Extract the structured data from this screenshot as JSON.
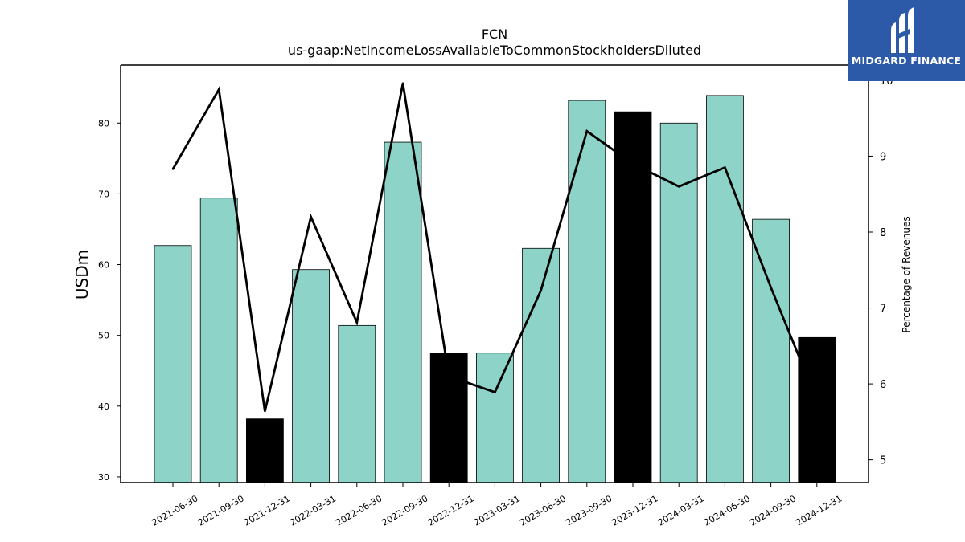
{
  "header": {
    "ticker": "FCN",
    "metric": "us-gaap:NetIncomeLossAvailableToCommonStockholdersDiluted"
  },
  "logo": {
    "text": "MIDGARD FINANCE",
    "background": "#2d5aa8"
  },
  "chart_data": {
    "type": "bar",
    "title": "FCN",
    "subtitle": "us-gaap:NetIncomeLossAvailableToCommonStockholdersDiluted",
    "ylabel": "USDm",
    "y2label": "Percentage of Revenues",
    "categories": [
      "2021-06-30",
      "2021-09-30",
      "2021-12-31",
      "2022-03-31",
      "2022-06-30",
      "2022-09-30",
      "2022-12-31",
      "2023-03-31",
      "2023-06-30",
      "2023-09-30",
      "2023-12-31",
      "2024-03-31",
      "2024-06-30",
      "2024-09-30",
      "2024-12-31"
    ],
    "ylim": [
      29.2,
      88.2
    ],
    "y2lim": [
      4.7,
      10.2
    ],
    "yticks": [
      30,
      40,
      50,
      60,
      70,
      80
    ],
    "y2ticks": [
      5,
      6,
      7,
      8,
      9,
      10
    ],
    "series": [
      {
        "name": "",
        "kind": "bar",
        "values": [
          62.7,
          69.4,
          38.2,
          59.3,
          51.4,
          77.3,
          47.5,
          47.5,
          62.3,
          83.2,
          81.6,
          80.0,
          83.9,
          66.4,
          49.7
        ],
        "colors": [
          "#8dd3c7",
          "#8dd3c7",
          "#000000",
          "#8dd3c7",
          "#8dd3c7",
          "#8dd3c7",
          "#000000",
          "#8dd3c7",
          "#8dd3c7",
          "#8dd3c7",
          "#000000",
          "#8dd3c7",
          "#8dd3c7",
          "#8dd3c7",
          "#000000"
        ]
      },
      {
        "name": "",
        "kind": "line",
        "axis": "right",
        "values": [
          8.83,
          9.88,
          5.64,
          8.2,
          6.81,
          9.96,
          6.1,
          5.89,
          7.23,
          9.33,
          8.9,
          8.6,
          8.85,
          7.27,
          5.78
        ]
      }
    ],
    "grid": false,
    "legend": "none",
    "colors": {
      "bar_primary": "#8dd3c7",
      "bar_highlight": "#000000",
      "line": "#000000"
    }
  }
}
